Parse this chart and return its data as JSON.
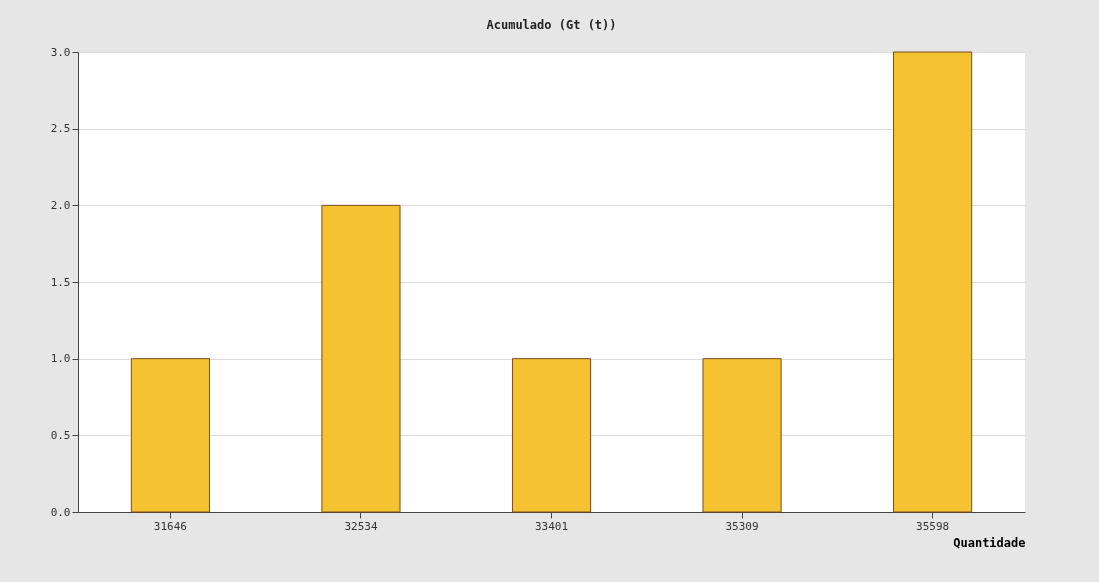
{
  "chart_data": {
    "type": "bar",
    "title": "Acumulado (Gt (t))",
    "xlabel": "Quantidade",
    "categories": [
      "31646",
      "32534",
      "33401",
      "35309",
      "35598"
    ],
    "values": [
      1,
      2,
      1,
      1,
      3
    ],
    "color": "#f5c232",
    "ylim": [
      0,
      3
    ],
    "yticks": [
      {
        "value": 0,
        "label": "0.0"
      },
      {
        "value": 0.5,
        "label": "0.5"
      },
      {
        "value": 1,
        "label": "1.0"
      },
      {
        "value": 1.5,
        "label": "1.5"
      },
      {
        "value": 2,
        "label": "2.0"
      },
      {
        "value": 2.5,
        "label": "2.5"
      },
      {
        "value": 3,
        "label": "3.0"
      }
    ],
    "grid": "y"
  }
}
